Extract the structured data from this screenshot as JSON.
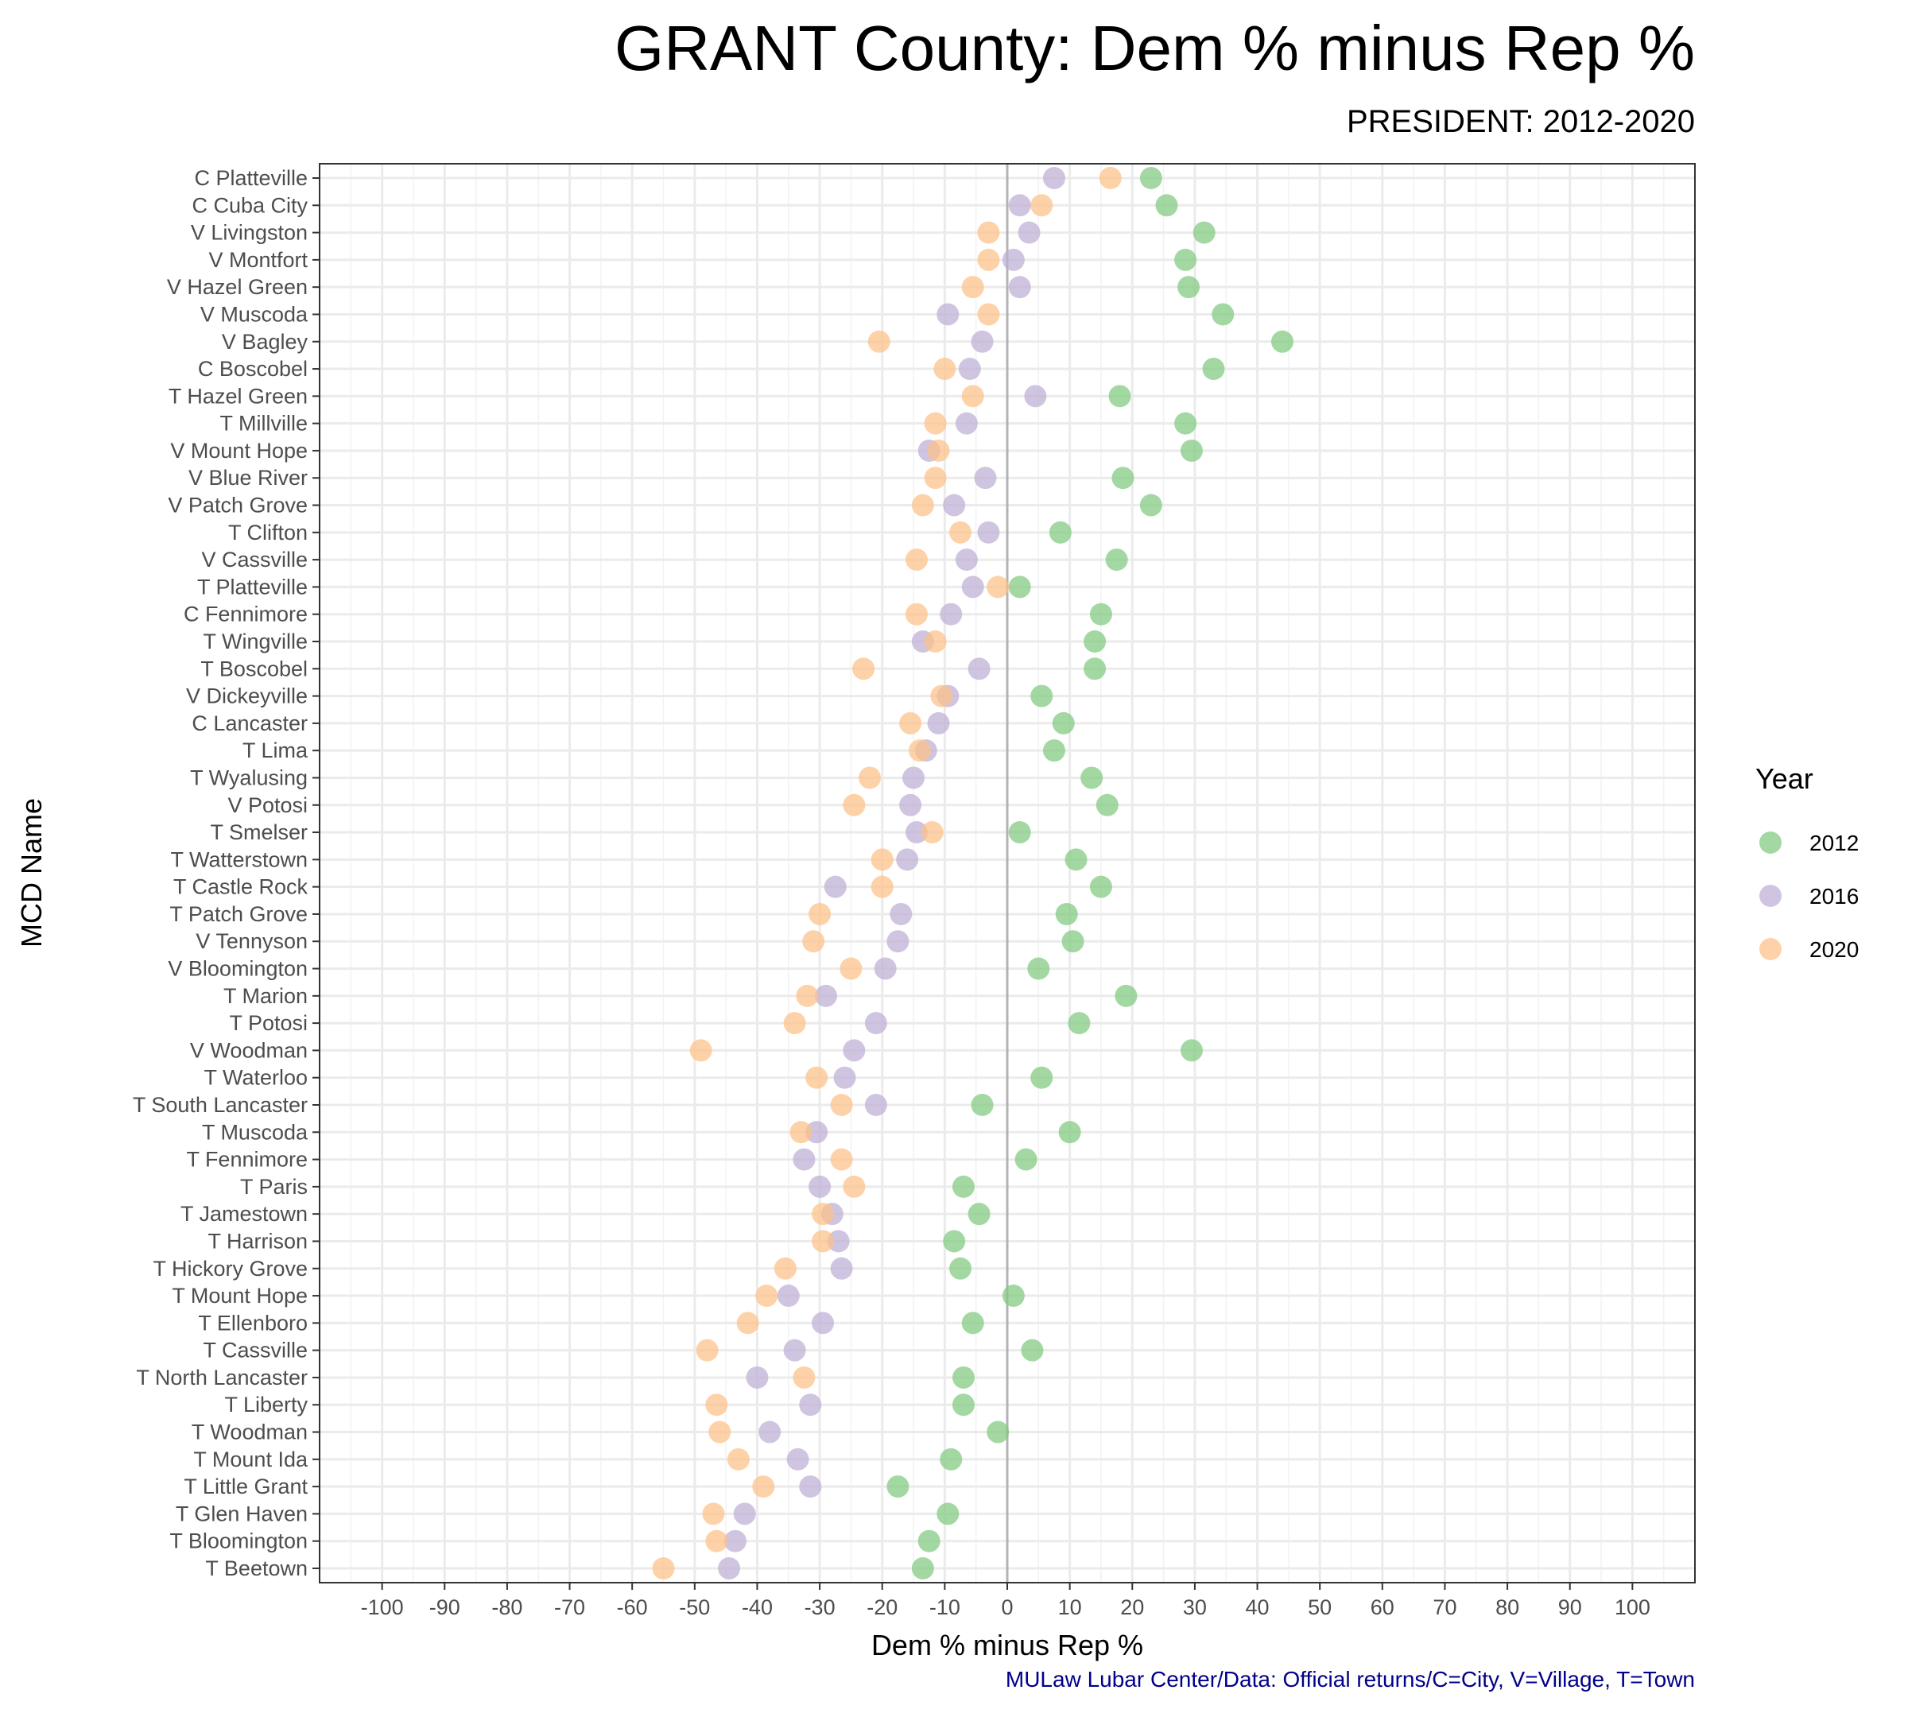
{
  "title": "GRANT County: Dem % minus Rep %",
  "subtitle": "PRESIDENT: 2012-2020",
  "caption": "MULaw Lubar Center/Data: Official returns/C=City, V=Village, T=Town",
  "chart_data": {
    "type": "scatter",
    "xlabel": "Dem % minus Rep %",
    "ylabel": "MCD Name",
    "xlim": [
      -110,
      110
    ],
    "xticks": [
      -100,
      -90,
      -80,
      -70,
      -60,
      -50,
      -40,
      -30,
      -20,
      -10,
      0,
      10,
      20,
      30,
      40,
      50,
      60,
      70,
      80,
      90,
      100
    ],
    "grid": true,
    "zero_line": 0,
    "legend_title": "Year",
    "legend_position": "right",
    "categories": [
      "C Platteville",
      "C Cuba City",
      "V Livingston",
      "V Montfort",
      "V Hazel Green",
      "V Muscoda",
      "V Bagley",
      "C Boscobel",
      "T Hazel Green",
      "T Millville",
      "V Mount Hope",
      "V Blue River",
      "V Patch Grove",
      "T Clifton",
      "V Cassville",
      "T Platteville",
      "C Fennimore",
      "T Wingville",
      "T Boscobel",
      "V Dickeyville",
      "C Lancaster",
      "T Lima",
      "T Wyalusing",
      "V Potosi",
      "T Smelser",
      "T Watterstown",
      "T Castle Rock",
      "T Patch Grove",
      "V Tennyson",
      "V Bloomington",
      "T Marion",
      "T Potosi",
      "V Woodman",
      "T Waterloo",
      "T South Lancaster",
      "T Muscoda",
      "T Fennimore",
      "T Paris",
      "T Jamestown",
      "T Harrison",
      "T Hickory Grove",
      "T Mount Hope",
      "T Ellenboro",
      "T Cassville",
      "T North Lancaster",
      "T Liberty",
      "T Woodman",
      "T Mount Ida",
      "T Little Grant",
      "T Glen Haven",
      "T Bloomington",
      "T Beetown"
    ],
    "series": [
      {
        "name": "2012",
        "color": "#7fc97f",
        "values": [
          23,
          25.5,
          31.5,
          28.5,
          29,
          34.5,
          44,
          33,
          18,
          28.5,
          29.5,
          18.5,
          23,
          8.5,
          17.5,
          2,
          15,
          14,
          14,
          5.5,
          9,
          7.5,
          13.5,
          16,
          2,
          11,
          15,
          9.5,
          10.5,
          5,
          19,
          11.5,
          29.5,
          5.5,
          -4,
          10,
          3,
          -7,
          -4.5,
          -8.5,
          -7.5,
          1,
          -5.5,
          4,
          -7,
          -7,
          -1.5,
          -9,
          -17.5,
          -9.5,
          -12.5,
          -13.5
        ]
      },
      {
        "name": "2016",
        "color": "#beaed4",
        "values": [
          7.5,
          2,
          3.5,
          1,
          2,
          -9.5,
          -4,
          -6,
          4.5,
          -6.5,
          -12.5,
          -3.5,
          -8.5,
          -3,
          -6.5,
          -5.5,
          -9,
          -13.5,
          -4.5,
          -9.5,
          -11,
          -13,
          -15,
          -15.5,
          -14.5,
          -16,
          -27.5,
          -17,
          -17.5,
          -19.5,
          -29,
          -21,
          -24.5,
          -26,
          -21,
          -30.5,
          -32.5,
          -30,
          -28,
          -27,
          -26.5,
          -35,
          -29.5,
          -34,
          -40,
          -31.5,
          -38,
          -33.5,
          -31.5,
          -42,
          -43.5,
          -44.5
        ]
      },
      {
        "name": "2020",
        "color": "#fdc086",
        "values": [
          16.5,
          5.5,
          -3,
          -3,
          -5.5,
          -3,
          -20.5,
          -10,
          -5.5,
          -11.5,
          -11,
          -11.5,
          -13.5,
          -7.5,
          -14.5,
          -1.5,
          -14.5,
          -11.5,
          -23,
          -10.5,
          -15.5,
          -14,
          -22,
          -24.5,
          -12,
          -20,
          -20,
          -30,
          -31,
          -25,
          -32,
          -34,
          -49,
          -30.5,
          -26.5,
          -33,
          -26.5,
          -24.5,
          -29.5,
          -29.5,
          -35.5,
          -38.5,
          -41.5,
          -48,
          -32.5,
          -46.5,
          -46,
          -43,
          -39,
          -47,
          -46.5,
          -55
        ]
      }
    ]
  }
}
